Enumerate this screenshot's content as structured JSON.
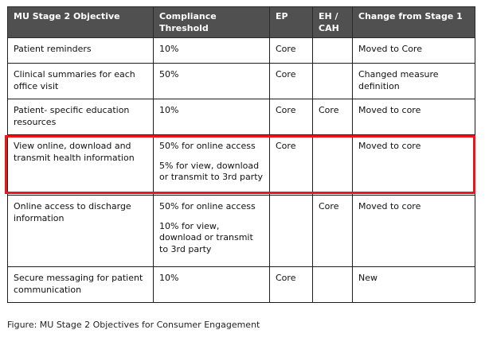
{
  "table": {
    "headers": [
      "MU Stage 2 Objective",
      "Compliance Threshold",
      "EP",
      "EH / CAH",
      "Change from Stage 1"
    ],
    "rows": [
      {
        "objective": "Patient reminders",
        "threshold": [
          "10%"
        ],
        "ep": "Core",
        "eh": "",
        "change": "Moved to Core"
      },
      {
        "objective": "Clinical summaries for each office visit",
        "threshold": [
          "50%"
        ],
        "ep": "Core",
        "eh": "",
        "change": "Changed measure definition"
      },
      {
        "objective": "Patient- specific education resources",
        "threshold": [
          "10%"
        ],
        "ep": "Core",
        "eh": "Core",
        "change": "Moved to core"
      },
      {
        "objective": "View online, download and transmit health information",
        "threshold": [
          "50% for online access",
          "5% for view, download or transmit to 3rd party"
        ],
        "ep": "Core",
        "eh": "",
        "change": "Moved to core"
      },
      {
        "objective": "Online access to discharge information",
        "threshold": [
          "50% for online access",
          "10% for view, download  or transmit to 3rd party"
        ],
        "ep": "",
        "eh": "Core",
        "change": "Moved to core"
      },
      {
        "objective": "Secure messaging for patient communication",
        "threshold": [
          "10%"
        ],
        "ep": "Core",
        "eh": "",
        "change": "New"
      }
    ]
  },
  "highlight_color": "#e8171b",
  "caption": "Figure: MU Stage 2 Objectives for Consumer Engagement"
}
